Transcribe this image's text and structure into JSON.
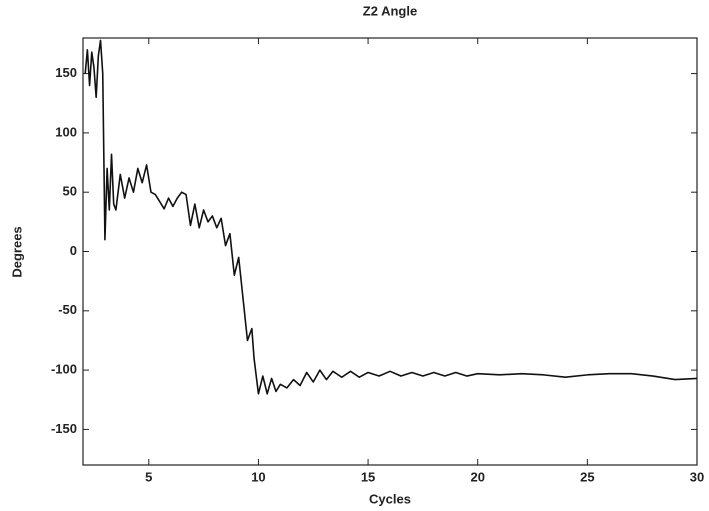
{
  "chart_data": {
    "type": "line",
    "title": "Z2 Angle",
    "x_label": "Cycles",
    "y_label": "Degrees",
    "x": [
      2.1,
      2.2,
      2.3,
      2.4,
      2.5,
      2.6,
      2.7,
      2.8,
      2.9,
      3.0,
      3.1,
      3.2,
      3.3,
      3.4,
      3.5,
      3.7,
      3.9,
      4.1,
      4.3,
      4.5,
      4.7,
      4.9,
      5.1,
      5.3,
      5.5,
      5.7,
      5.9,
      6.1,
      6.3,
      6.5,
      6.7,
      6.9,
      7.1,
      7.3,
      7.5,
      7.7,
      7.9,
      8.1,
      8.3,
      8.5,
      8.7,
      8.9,
      9.1,
      9.3,
      9.5,
      9.7,
      9.8,
      10.0,
      10.2,
      10.4,
      10.6,
      10.8,
      11.0,
      11.3,
      11.6,
      11.9,
      12.2,
      12.5,
      12.8,
      13.1,
      13.4,
      13.8,
      14.2,
      14.6,
      15.0,
      15.5,
      16.0,
      16.5,
      17.0,
      17.5,
      18.0,
      18.5,
      19.0,
      19.5,
      20.0,
      21,
      22,
      23,
      24,
      25,
      26,
      27,
      28,
      29,
      30
    ],
    "series": [
      {
        "name": "Z2 Angle",
        "color": "#111111",
        "values": [
          150,
          170,
          140,
          168,
          155,
          130,
          165,
          178,
          150,
          10,
          70,
          35,
          82,
          40,
          35,
          65,
          45,
          62,
          50,
          70,
          58,
          73,
          50,
          48,
          42,
          36,
          45,
          38,
          45,
          50,
          48,
          22,
          40,
          20,
          35,
          25,
          30,
          20,
          28,
          5,
          15,
          -20,
          -5,
          -40,
          -75,
          -65,
          -90,
          -120,
          -105,
          -120,
          -107,
          -118,
          -112,
          -115,
          -108,
          -113,
          -102,
          -110,
          -100,
          -108,
          -101,
          -106,
          -101,
          -106,
          -102,
          -105,
          -101,
          -105,
          -102,
          -105,
          -102,
          -105,
          -102,
          -105,
          -103,
          -104,
          -103,
          -104,
          -106,
          -104,
          -103,
          -103,
          -105,
          -108,
          -107
        ]
      }
    ],
    "xlim": [
      2,
      30
    ],
    "ylim": [
      -180,
      180
    ],
    "xticks": [
      5,
      10,
      15,
      20,
      25,
      30
    ],
    "yticks": [
      -150,
      -100,
      -50,
      0,
      50,
      100,
      150
    ],
    "grid": false
  }
}
